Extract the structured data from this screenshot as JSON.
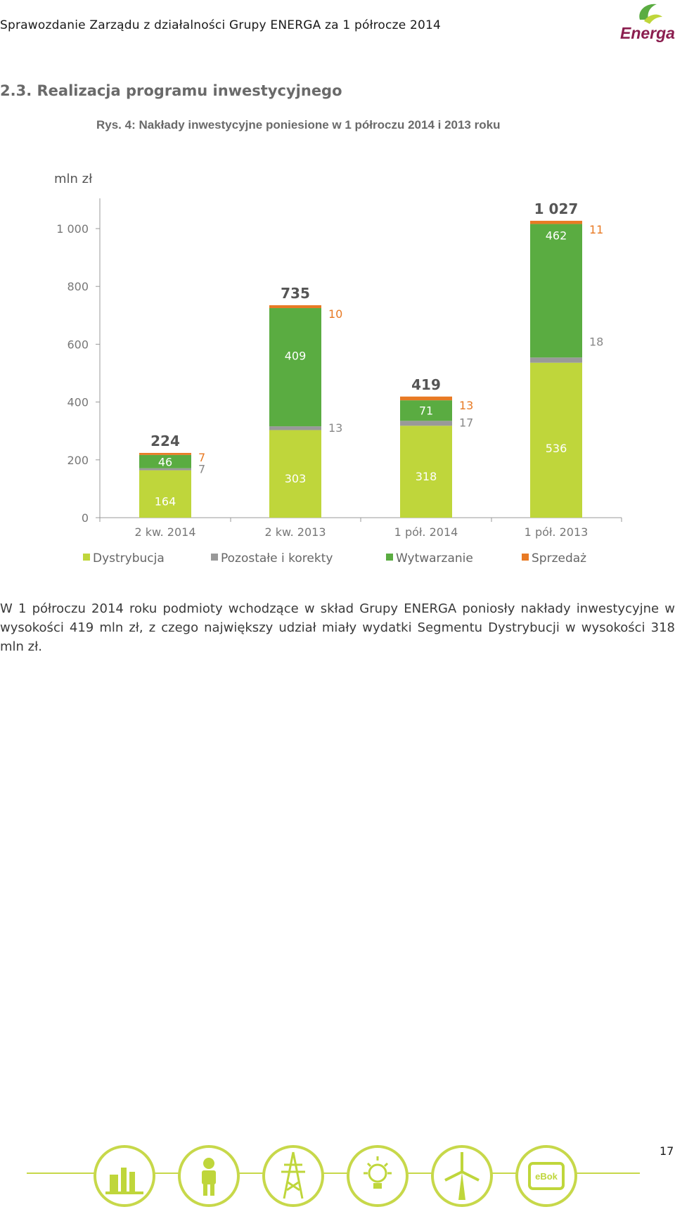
{
  "header": {
    "title": "Sprawozdanie Zarządu z działalności Grupy ENERGA za 1 półrocze 2014",
    "logo_text": "Energa"
  },
  "section": {
    "title": "2.3.  Realizacja programu inwestycyjnego",
    "figure_caption": "Rys. 4: Nakłady inwestycyjne poniesione w 1 półroczu 2014 i 2013 roku"
  },
  "chart_data": {
    "type": "bar",
    "stacked": true,
    "ylabel": "mln zł",
    "ylim": [
      0,
      1100
    ],
    "yticks": [
      0,
      200,
      400,
      600,
      800,
      1000
    ],
    "ytick_labels": [
      "0",
      "200",
      "400",
      "600",
      "800",
      "1 000"
    ],
    "categories": [
      "2 kw. 2014",
      "2 kw. 2013",
      "1 pół. 2014",
      "1 pół. 2013"
    ],
    "series": [
      {
        "name": "Dystrybucja",
        "color": "#bfd63b",
        "values": [
          164,
          303,
          318,
          536
        ]
      },
      {
        "name": "Pozostałe i korekty",
        "color": "#999999",
        "values": [
          7,
          13,
          17,
          18
        ]
      },
      {
        "name": "Wytwarzanie",
        "color": "#5aac41",
        "values": [
          46,
          409,
          71,
          462
        ]
      },
      {
        "name": "Sprzedaż",
        "color": "#e87a24",
        "values": [
          7,
          10,
          13,
          11
        ]
      }
    ],
    "totals": [
      "224",
      "735",
      "419",
      "1 027"
    ],
    "grid": false,
    "legend_position": "bottom"
  },
  "body": {
    "paragraph": "W 1 półroczu 2014 roku podmioty wchodzące w skład Grupy ENERGA poniosły nakłady inwestycyjne w wysokości 419 mln zł, z czego największy udział miały wydatki Segmentu Dystrybucji w wysokości 318 mln zł."
  },
  "footer": {
    "page_number": "17",
    "icons": [
      "power-plant-icon",
      "worker-icon",
      "power-tower-icon",
      "light-bulb-icon",
      "wind-turbine-icon",
      "ebook-icon"
    ],
    "ebook_label": "eBok",
    "colors": {
      "line": "#c7d84a",
      "icon": "#bfd63b"
    }
  }
}
